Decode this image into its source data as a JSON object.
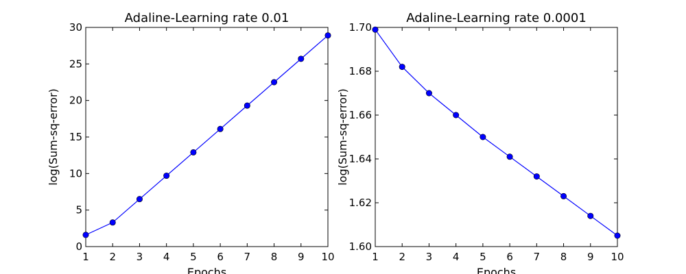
{
  "chart_data": [
    {
      "type": "line",
      "title": "Adaline-Learning rate 0.01",
      "xlabel": "Epochs",
      "ylabel": "log(Sum-sq-error)",
      "xlim": [
        1,
        10
      ],
      "ylim": [
        0,
        30
      ],
      "x_ticks": [
        "1",
        "2",
        "3",
        "4",
        "5",
        "6",
        "7",
        "8",
        "9",
        "10"
      ],
      "y_ticks": [
        "0",
        "5",
        "10",
        "15",
        "20",
        "25",
        "30"
      ],
      "grid": false,
      "series": [
        {
          "color": "#0000ff",
          "marker": "circle",
          "x": [
            1,
            2,
            3,
            4,
            5,
            6,
            7,
            8,
            9,
            10
          ],
          "y": [
            1.6,
            3.3,
            6.5,
            9.7,
            12.9,
            16.1,
            19.3,
            22.5,
            25.7,
            28.9
          ]
        }
      ]
    },
    {
      "type": "line",
      "title": "Adaline-Learning rate 0.0001",
      "xlabel": "Epochs",
      "ylabel": "log(Sum-sq-error)",
      "xlim": [
        1,
        10
      ],
      "ylim": [
        1.6,
        1.7
      ],
      "x_ticks": [
        "1",
        "2",
        "3",
        "4",
        "5",
        "6",
        "7",
        "8",
        "9",
        "10"
      ],
      "y_ticks": [
        "1.60",
        "1.62",
        "1.64",
        "1.66",
        "1.68",
        "1.70"
      ],
      "grid": false,
      "series": [
        {
          "color": "#0000ff",
          "marker": "circle",
          "x": [
            1,
            2,
            3,
            4,
            5,
            6,
            7,
            8,
            9,
            10
          ],
          "y": [
            1.699,
            1.682,
            1.67,
            1.66,
            1.65,
            1.641,
            1.632,
            1.623,
            1.614,
            1.605
          ]
        }
      ]
    }
  ]
}
